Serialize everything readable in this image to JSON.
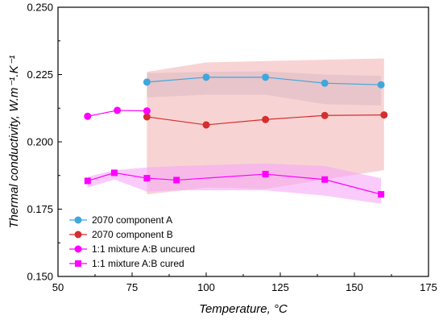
{
  "chart_data": {
    "type": "line",
    "xlabel": "Temperature, °C",
    "ylabel": "Thermal conductivity, W.m⁻¹.K⁻¹",
    "xlim": [
      50,
      175
    ],
    "ylim": [
      0.15,
      0.25
    ],
    "xticks": [
      "50",
      "75",
      "100",
      "125",
      "150",
      "175"
    ],
    "yticks": [
      "0.150",
      "0.175",
      "0.200",
      "0.225",
      "0.250"
    ],
    "grid": false,
    "legend_position": "bottom-left",
    "series": [
      {
        "name": "2070 component A",
        "color": "#3fa7dc",
        "marker": "circle",
        "x": [
          80,
          100,
          120,
          140,
          159
        ],
        "y": [
          0.2222,
          0.224,
          0.224,
          0.2218,
          0.2212
        ],
        "band_color": "#b8c4d8",
        "band_lower": [
          0.2165,
          0.2175,
          0.2175,
          0.214,
          0.2135
        ],
        "band_upper": [
          0.2255,
          0.226,
          0.2262,
          0.225,
          0.2245
        ]
      },
      {
        "name": "2070 component B",
        "color": "#d32f2f",
        "marker": "circle",
        "x": [
          80,
          100,
          120,
          140,
          160
        ],
        "y": [
          0.2093,
          0.2063,
          0.2083,
          0.2098,
          0.21
        ],
        "band_color": "#f4b6b6",
        "band_lower": [
          0.1805,
          0.183,
          0.1825,
          0.186,
          0.1895
        ],
        "band_upper": [
          0.226,
          0.2295,
          0.23,
          0.2305,
          0.231
        ]
      },
      {
        "name": "1:1 mixture A:B uncured",
        "color": "#ff00ff",
        "marker": "circle",
        "x": [
          60,
          70,
          80
        ],
        "y": [
          0.2095,
          0.2117,
          0.2115
        ],
        "band_color": null,
        "band_lower": [],
        "band_upper": []
      },
      {
        "name": "1:1 mixture A:B cured",
        "color": "#ff00ff",
        "marker": "square",
        "x": [
          60,
          69,
          80,
          90,
          120,
          140,
          159
        ],
        "y": [
          0.1855,
          0.1885,
          0.1865,
          0.1858,
          0.188,
          0.186,
          0.1805
        ],
        "band_color": "#f6a8f6",
        "band_lower": [
          0.183,
          0.186,
          0.1815,
          0.182,
          0.182,
          0.18,
          0.177
        ],
        "band_upper": [
          0.187,
          0.1895,
          0.1905,
          0.191,
          0.192,
          0.191,
          0.1865
        ]
      }
    ]
  }
}
